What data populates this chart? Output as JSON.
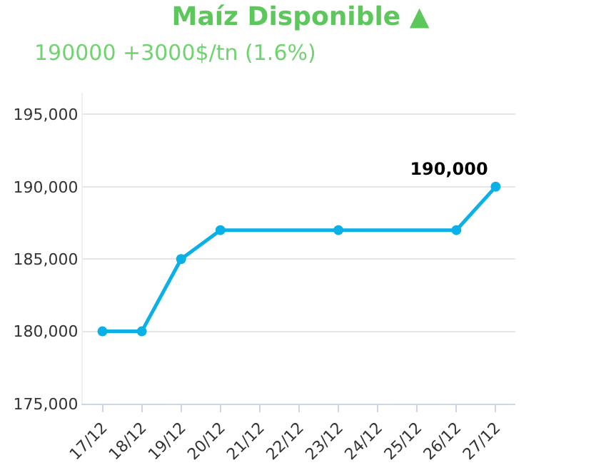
{
  "chart_data": {
    "type": "line",
    "title": "Maíz Disponible ▲",
    "subtitle": "190000 +3000$/tn (1.6%)",
    "categories": [
      "17/12",
      "18/12",
      "19/12",
      "20/12",
      "21/12",
      "22/12",
      "23/12",
      "24/12",
      "25/12",
      "26/12",
      "27/12"
    ],
    "series": [
      {
        "color": "#0ab0e6",
        "values": [
          180000,
          180000,
          185000,
          187000,
          null,
          null,
          187000,
          null,
          null,
          187000,
          190000
        ],
        "value_labels": [
          null,
          null,
          null,
          null,
          null,
          null,
          null,
          null,
          null,
          null,
          "190,000"
        ]
      }
    ],
    "ylim": [
      175000,
      196500
    ],
    "yticks": [
      {
        "value": 175000,
        "label": "175,000"
      },
      {
        "value": 180000,
        "label": "180,000"
      },
      {
        "value": 185000,
        "label": "185,000"
      },
      {
        "value": 190000,
        "label": "190,000"
      },
      {
        "value": 195000,
        "label": "195,000"
      }
    ],
    "grid": "y",
    "marker": "circle",
    "line_style": "solid"
  }
}
